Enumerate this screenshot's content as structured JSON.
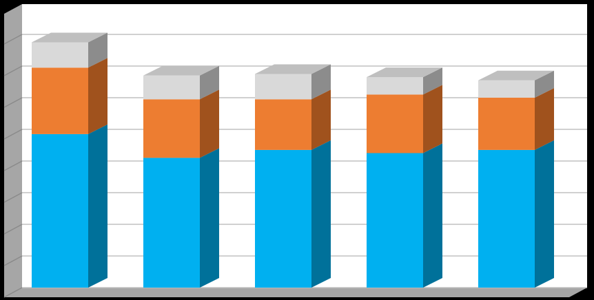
{
  "chart_data": {
    "type": "bar",
    "stacked": true,
    "three_d": true,
    "title": "",
    "xlabel": "",
    "ylabel": "",
    "ylim": [
      0,
      8
    ],
    "grid": true,
    "legend": "none",
    "categories": [
      "",
      "",
      "",
      "",
      ""
    ],
    "series": [
      {
        "values": [
          4.85,
          4.1,
          4.35,
          4.25,
          4.35
        ]
      },
      {
        "values": [
          2.1,
          1.85,
          1.6,
          1.85,
          1.65
        ]
      },
      {
        "values": [
          0.8,
          0.75,
          0.8,
          0.55,
          0.55
        ]
      }
    ]
  },
  "colors": {
    "background": "#000000",
    "plot_face": "#ffffff",
    "plot_side": "#a6a6a6",
    "floor": "#a6a6a6",
    "gridline": "#c0c0c0",
    "series": [
      {
        "front": "#00b0f0",
        "side": "#00719a",
        "top": "#5fd0f7"
      },
      {
        "front": "#ed7d31",
        "side": "#a0521d",
        "top": "#f2a46c"
      },
      {
        "front": "#d9d9d9",
        "side": "#8c8c8c",
        "top": "#bfbfbf"
      }
    ]
  }
}
